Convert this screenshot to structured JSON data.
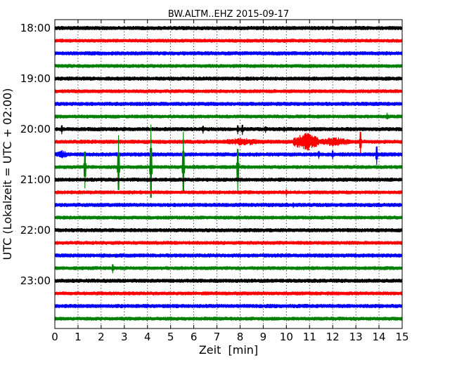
{
  "chart_data": {
    "type": "line",
    "title": "BW.ALTM..EHZ 2015-09-17",
    "xlabel": "Zeit  [min]",
    "ylabel": "UTC (Lokalzeit = UTC + 02:00)",
    "xlim": [
      0,
      15
    ],
    "x_ticks": [
      "0",
      "1",
      "2",
      "3",
      "4",
      "5",
      "6",
      "7",
      "8",
      "9",
      "10",
      "11",
      "12",
      "13",
      "14",
      "15"
    ],
    "y_ticks": [
      "18:00",
      "19:00",
      "20:00",
      "21:00",
      "22:00",
      "23:00"
    ],
    "grid": "vertical-dotted",
    "trace_colors": [
      "#000000",
      "#ff0000",
      "#0000ff",
      "#008000"
    ],
    "traces": [
      {
        "start": "18:00",
        "noise": 2.6
      },
      {
        "start": "18:15",
        "noise": 2.4
      },
      {
        "start": "18:30",
        "noise": 2.6
      },
      {
        "start": "18:45",
        "noise": 2.4
      },
      {
        "start": "19:00",
        "noise": 2.6
      },
      {
        "start": "19:15",
        "noise": 2.4
      },
      {
        "start": "19:30",
        "noise": 2.6
      },
      {
        "start": "19:45",
        "noise": 2.4,
        "events": [
          {
            "x": 14.35,
            "amp": 5
          }
        ]
      },
      {
        "start": "20:00",
        "noise": 2.6,
        "events": [
          {
            "x": 0.3,
            "amp": 7
          },
          {
            "x": 6.4,
            "amp": 6
          },
          {
            "x": 7.9,
            "amp": 7
          },
          {
            "x": 8.1,
            "amp": 8
          },
          {
            "x": 9.1,
            "amp": 5
          },
          {
            "x": 9.9,
            "amp": 4
          }
        ]
      },
      {
        "start": "20:15",
        "noise": 2.6,
        "bursts": [
          {
            "from": 7.2,
            "to": 9.0,
            "amp": 6
          },
          {
            "from": 10.3,
            "to": 11.4,
            "amp": 14
          },
          {
            "from": 11.4,
            "to": 12.8,
            "amp": 7
          }
        ],
        "events": [
          {
            "x": 13.2,
            "amp": 19
          }
        ]
      },
      {
        "start": "20:30",
        "noise": 2.6,
        "bursts": [
          {
            "from": 0.0,
            "to": 0.6,
            "amp": 6
          }
        ],
        "events": [
          {
            "x": 11.4,
            "amp": 6
          },
          {
            "x": 12.0,
            "amp": 7
          },
          {
            "x": 13.9,
            "amp": 15
          }
        ]
      },
      {
        "start": "20:45",
        "noise": 2.4,
        "events": [
          {
            "x": 1.3,
            "amp": 30
          },
          {
            "x": 2.75,
            "amp": 45
          },
          {
            "x": 4.15,
            "amp": 60
          },
          {
            "x": 5.55,
            "amp": 50
          },
          {
            "x": 7.9,
            "amp": 35
          }
        ]
      },
      {
        "start": "21:00",
        "noise": 2.6
      },
      {
        "start": "21:15",
        "noise": 2.4,
        "events": [
          {
            "x": 10.0,
            "amp": 5
          }
        ]
      },
      {
        "start": "21:30",
        "noise": 2.6,
        "events": [
          {
            "x": 10.3,
            "amp": 4
          }
        ]
      },
      {
        "start": "21:45",
        "noise": 2.4
      },
      {
        "start": "22:00",
        "noise": 2.6
      },
      {
        "start": "22:15",
        "noise": 2.4
      },
      {
        "start": "22:30",
        "noise": 2.6
      },
      {
        "start": "22:45",
        "noise": 2.4,
        "events": [
          {
            "x": 2.5,
            "amp": 7
          }
        ]
      },
      {
        "start": "23:00",
        "noise": 2.6
      },
      {
        "start": "23:15",
        "noise": 2.4
      },
      {
        "start": "23:30",
        "noise": 2.6
      },
      {
        "start": "23:45",
        "noise": 2.4
      }
    ]
  }
}
